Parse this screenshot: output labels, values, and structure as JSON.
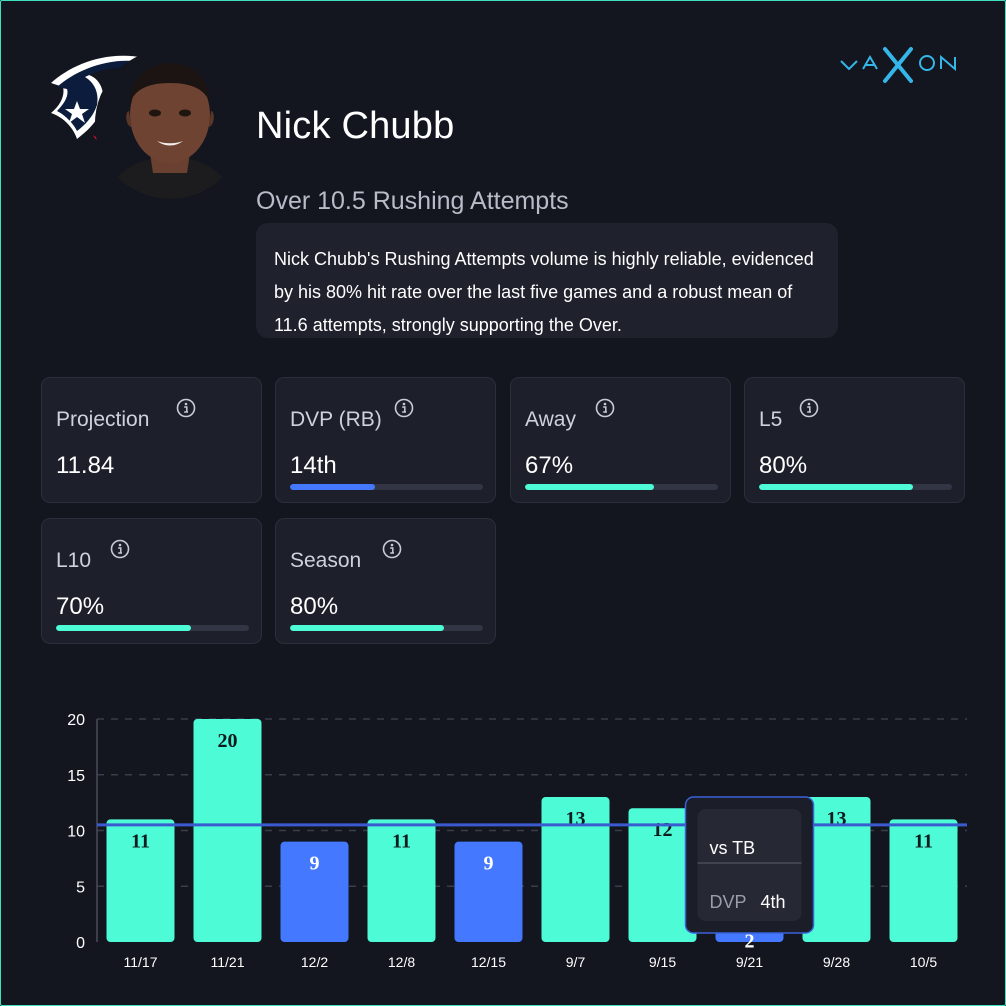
{
  "brand": {
    "name": "jaXon",
    "accent": "#35b6e8"
  },
  "player": {
    "name": "Nick Chubb",
    "prop": "Over 10.5 Rushing Attempts",
    "summary": "Nick Chubb's Rushing Attempts volume is highly reliable, evidenced by his 80% hit rate over the last five games and a robust mean of 11.6 attempts, strongly supporting the Over.",
    "team_logo": "houston-texans-logo",
    "avatar": "player-headshot"
  },
  "colors": {
    "hit": "#4dfcd6",
    "miss": "#4478ff",
    "line": "#3a5bd0",
    "card_bg": "#1d1f2a"
  },
  "stats": [
    {
      "label": "Projection",
      "value": "11.84",
      "bar": null,
      "icon": "info-icon"
    },
    {
      "label": "DVP (RB)",
      "value": "14th",
      "bar": {
        "fraction": 0.44,
        "color": "#4478ff"
      },
      "icon": "info-icon"
    },
    {
      "label": "Away",
      "value": "67%",
      "bar": {
        "fraction": 0.67,
        "color": "#4dfcd6"
      },
      "icon": "info-icon"
    },
    {
      "label": "L5",
      "value": "80%",
      "bar": {
        "fraction": 0.8,
        "color": "#4dfcd6"
      },
      "icon": "info-icon"
    },
    {
      "label": "L10",
      "value": "70%",
      "bar": {
        "fraction": 0.7,
        "color": "#4dfcd6"
      },
      "icon": "info-icon"
    },
    {
      "label": "Season",
      "value": "80%",
      "bar": {
        "fraction": 0.8,
        "color": "#4dfcd6"
      },
      "icon": "info-icon"
    }
  ],
  "chart_data": {
    "type": "bar",
    "categories": [
      "11/17",
      "11/21",
      "12/2",
      "12/8",
      "12/15",
      "9/7",
      "9/15",
      "9/21",
      "9/28",
      "10/5"
    ],
    "values": [
      11,
      20,
      9,
      11,
      9,
      13,
      12,
      2,
      13,
      11
    ],
    "line_value": 10.5,
    "ylim": [
      0,
      20
    ],
    "yticks": [
      0,
      5,
      10,
      15,
      20
    ],
    "grid": true,
    "tooltip": {
      "category": "9/21",
      "title": "vs TB",
      "label": "DVP",
      "value": "4th"
    }
  }
}
